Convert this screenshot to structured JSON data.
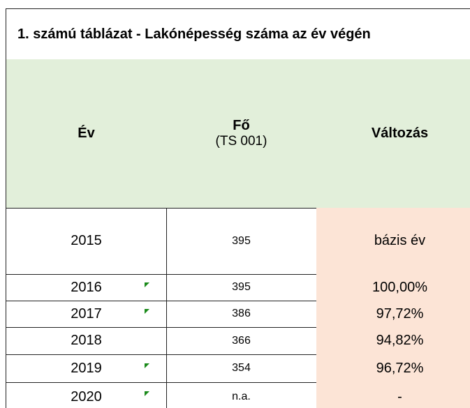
{
  "table": {
    "title": "1. számú táblázat - Lakónépesség száma az év végén",
    "header": {
      "year": "Év",
      "count": "Fő",
      "count_code": "(TS 001)",
      "change": "Változás"
    },
    "rows": [
      [
        "2015",
        "395",
        "bázis év"
      ],
      [
        "2016",
        "395",
        "100,00%"
      ],
      [
        "2017",
        "386",
        "97,72%"
      ],
      [
        "2018",
        "366",
        "94,82%"
      ],
      [
        "2019",
        "354",
        "96,72%"
      ],
      [
        "2020",
        "n.a.",
        "-"
      ]
    ]
  }
}
